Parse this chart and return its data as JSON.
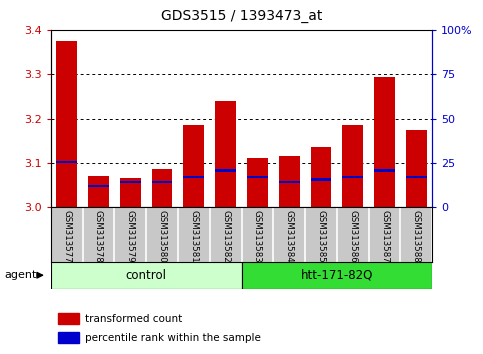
{
  "title": "GDS3515 / 1393473_at",
  "samples": [
    "GSM313577",
    "GSM313578",
    "GSM313579",
    "GSM313580",
    "GSM313581",
    "GSM313582",
    "GSM313583",
    "GSM313584",
    "GSM313585",
    "GSM313586",
    "GSM313587",
    "GSM313588"
  ],
  "red_values": [
    3.375,
    3.07,
    3.065,
    3.085,
    3.185,
    3.24,
    3.11,
    3.115,
    3.135,
    3.185,
    3.295,
    3.175
  ],
  "blue_values": [
    3.1,
    3.045,
    3.055,
    3.055,
    3.065,
    3.08,
    3.065,
    3.055,
    3.06,
    3.065,
    3.08,
    3.065
  ],
  "blue_heights": [
    0.005,
    0.005,
    0.005,
    0.005,
    0.005,
    0.005,
    0.005,
    0.005,
    0.005,
    0.005,
    0.005,
    0.005
  ],
  "ylim": [
    3.0,
    3.4
  ],
  "y2lim": [
    0,
    100
  ],
  "yticks": [
    3.0,
    3.1,
    3.2,
    3.3,
    3.4
  ],
  "y2ticks": [
    0,
    25,
    50,
    75,
    100
  ],
  "y2ticklabels": [
    "0",
    "25",
    "50",
    "75",
    "100%"
  ],
  "bar_color": "#cc0000",
  "blue_color": "#0000cc",
  "bar_width": 0.65,
  "grid_color": "#000000",
  "bg_color": "#c8c8c8",
  "plot_bg": "#ffffff",
  "group1_label": "control",
  "group2_label": "htt-171-82Q",
  "group1_color": "#ccffcc",
  "group2_color": "#33dd33",
  "agent_label": "agent",
  "legend1": "transformed count",
  "legend2": "percentile rank within the sample",
  "title_color": "#000000",
  "left_axis_color": "#cc0000",
  "right_axis_color": "#0000cc"
}
